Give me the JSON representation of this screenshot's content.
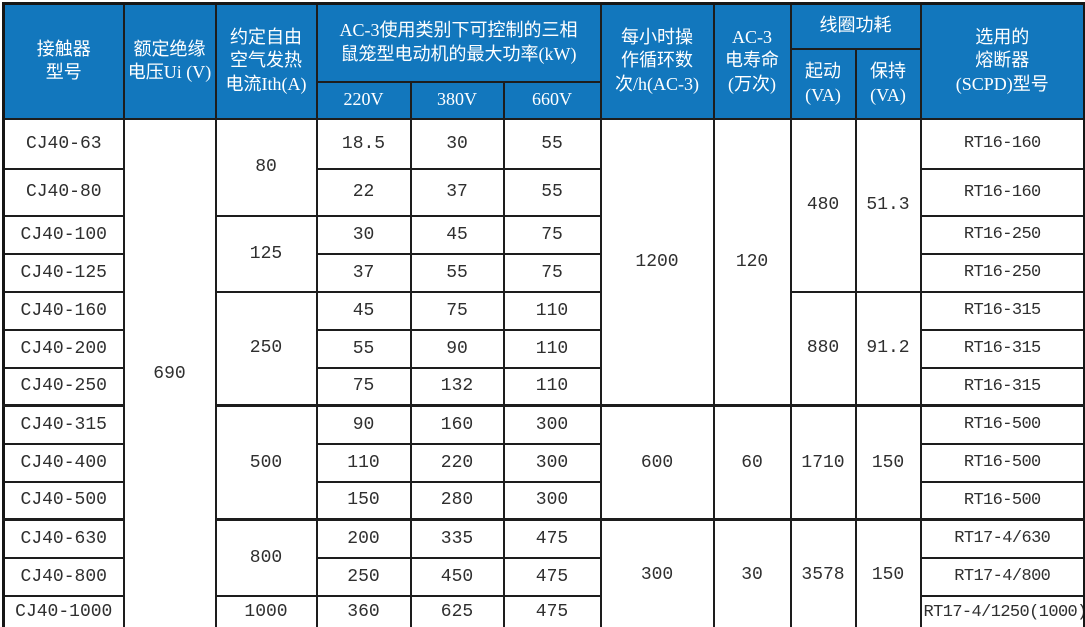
{
  "colors": {
    "header_bg": "#1277bd",
    "header_text": "#ffffff",
    "grid_border": "#1d1d1d",
    "body_text": "#2f2f2f",
    "body_bg": "#ffffff"
  },
  "table": {
    "header": {
      "model": "接触器\n型号",
      "ui": "额定绝缘\n电压Ui (V)",
      "ith": "约定自由\n空气发热\n电流Ith(A)",
      "power_group": "AC-3使用类别下可控制的三相\n鼠笼型电动机的最大功率(kW)",
      "power_cols": [
        "220V",
        "380V",
        "660V"
      ],
      "cycles": "每小时操\n作循环数\n次/h(AC-3)",
      "life": "AC-3\n电寿命\n(万次)",
      "coil_group": "线圈功耗",
      "coil_start": "起动\n(VA)",
      "coil_hold": "保持\n(VA)",
      "fuse": "选用的\n熔断器\n(SCPD)型号"
    },
    "rows": [
      {
        "model": "CJ40-63",
        "p220": "18.5",
        "p380": "30",
        "p660": "55",
        "fuse": "RT16-160"
      },
      {
        "model": "CJ40-80",
        "p220": "22",
        "p380": "37",
        "p660": "55",
        "fuse": "RT16-160"
      },
      {
        "model": "CJ40-100",
        "p220": "30",
        "p380": "45",
        "p660": "75",
        "fuse": "RT16-250"
      },
      {
        "model": "CJ40-125",
        "p220": "37",
        "p380": "55",
        "p660": "75",
        "fuse": "RT16-250"
      },
      {
        "model": "CJ40-160",
        "p220": "45",
        "p380": "75",
        "p660": "110",
        "fuse": "RT16-315"
      },
      {
        "model": "CJ40-200",
        "p220": "55",
        "p380": "90",
        "p660": "110",
        "fuse": "RT16-315"
      },
      {
        "model": "CJ40-250",
        "p220": "75",
        "p380": "132",
        "p660": "110",
        "fuse": "RT16-315"
      },
      {
        "model": "CJ40-315",
        "p220": "90",
        "p380": "160",
        "p660": "300",
        "fuse": "RT16-500"
      },
      {
        "model": "CJ40-400",
        "p220": "110",
        "p380": "220",
        "p660": "300",
        "fuse": "RT16-500"
      },
      {
        "model": "CJ40-500",
        "p220": "150",
        "p380": "280",
        "p660": "300",
        "fuse": "RT16-500"
      },
      {
        "model": "CJ40-630",
        "p220": "200",
        "p380": "335",
        "p660": "475",
        "fuse": "RT17-4/630"
      },
      {
        "model": "CJ40-800",
        "p220": "250",
        "p380": "450",
        "p660": "475",
        "fuse": "RT17-4/800"
      },
      {
        "model": "CJ40-1000",
        "p220": "360",
        "p380": "625",
        "p660": "475",
        "fuse": "RT17-4/1250(1000)"
      }
    ],
    "merged": {
      "ui": [
        {
          "value": "690",
          "from": 0,
          "span": 13
        }
      ],
      "ith": [
        {
          "value": "80",
          "from": 0,
          "span": 2
        },
        {
          "value": "125",
          "from": 2,
          "span": 2
        },
        {
          "value": "250",
          "from": 4,
          "span": 3
        },
        {
          "value": "500",
          "from": 7,
          "span": 3
        },
        {
          "value": "800",
          "from": 10,
          "span": 2
        },
        {
          "value": "1000",
          "from": 12,
          "span": 1
        }
      ],
      "cycles": [
        {
          "value": "1200",
          "from": 0,
          "span": 7
        },
        {
          "value": "600",
          "from": 7,
          "span": 3
        },
        {
          "value": "300",
          "from": 10,
          "span": 3
        }
      ],
      "life": [
        {
          "value": "120",
          "from": 0,
          "span": 7
        },
        {
          "value": "60",
          "from": 7,
          "span": 3
        },
        {
          "value": "30",
          "from": 10,
          "span": 3
        }
      ],
      "start": [
        {
          "value": "480",
          "from": 0,
          "span": 4
        },
        {
          "value": "880",
          "from": 4,
          "span": 3
        },
        {
          "value": "1710",
          "from": 7,
          "span": 3
        },
        {
          "value": "3578",
          "from": 10,
          "span": 3
        }
      ],
      "hold": [
        {
          "value": "51.3",
          "from": 0,
          "span": 4
        },
        {
          "value": "91.2",
          "from": 4,
          "span": 3
        },
        {
          "value": "150",
          "from": 7,
          "span": 3
        },
        {
          "value": "150",
          "from": 10,
          "span": 3
        }
      ]
    }
  }
}
